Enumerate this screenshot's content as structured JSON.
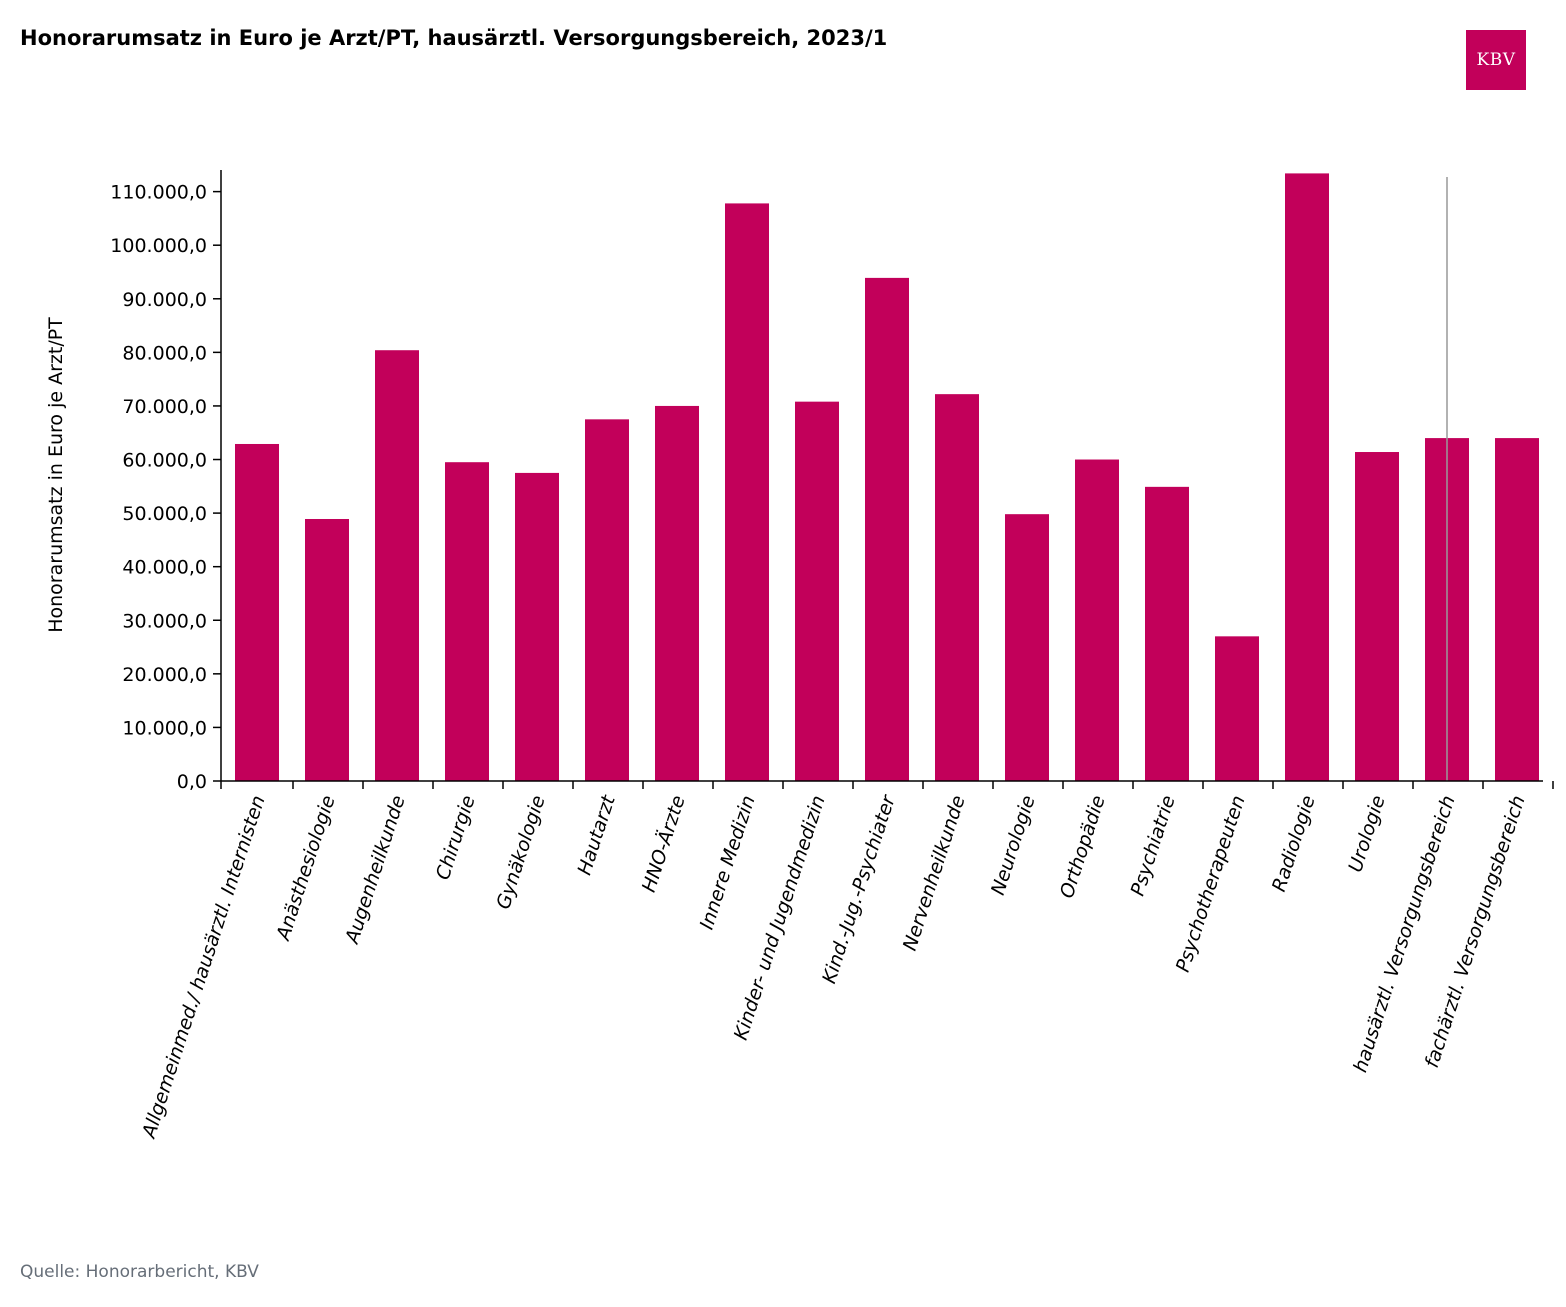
{
  "title": "Honorarumsatz in Euro je Arzt/PT, hausärztl. Versorgungsbereich, 2023/1",
  "logo_text": "KBV",
  "source": "Quelle: Honorarbericht, KBV",
  "colors": {
    "bar": "#c2005a",
    "logo_bg": "#c2005a",
    "source_text": "#666e78",
    "marker_line": "#999999"
  },
  "chart_data": {
    "type": "bar",
    "title": "Honorarumsatz in Euro je Arzt/PT, hausärztl. Versorgungsbereich, 2023/1",
    "xlabel": "",
    "ylabel": "Honorarumsatz in Euro je Arzt/PT",
    "ylim": [
      0,
      114000
    ],
    "yticks": [
      0,
      10000,
      20000,
      30000,
      40000,
      50000,
      60000,
      70000,
      80000,
      90000,
      100000,
      110000
    ],
    "ytick_labels": [
      "0,0",
      "10.000,0",
      "20.000,0",
      "30.000,0",
      "40.000,0",
      "50.000,0",
      "60.000,0",
      "70.000,0",
      "80.000,0",
      "90.000,0",
      "100.000,0",
      "110.000,0"
    ],
    "categories": [
      "Allgemeinmed./ hausärztl. Internisten",
      "Anästhesiologie",
      "Augenheilkunde",
      "Chirurgie",
      "Gynäkologie",
      "Hautarzt",
      "HNO-Ärzte",
      "Innere Medizin",
      "Kinder- und Jugendmedizin",
      "Kind.-Jug.-Psychiater",
      "Nervenheilkunde",
      "Neurologie",
      "Orthopädie",
      "Psychiatrie",
      "Psychotherapeuten",
      "Radiologie",
      "Urologie",
      "hausärztl. Versorgungsbereich",
      "fachärztl. Versorgungsbereich"
    ],
    "values": [
      62900,
      48900,
      80400,
      59500,
      57500,
      67500,
      70000,
      107800,
      70800,
      93900,
      72200,
      49800,
      60000,
      54900,
      27000,
      113400,
      61400,
      64000,
      64000
    ],
    "highlight_category": "hausärztl. Versorgungsbereich",
    "grid": false,
    "legend": "none"
  }
}
